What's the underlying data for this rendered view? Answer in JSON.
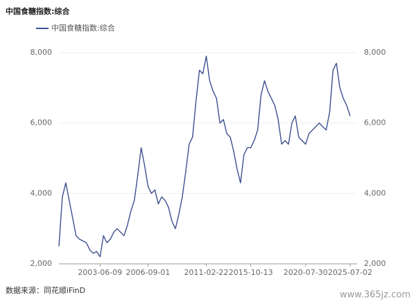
{
  "chart_data": {
    "type": "line",
    "title": "中国食糖指数:综合",
    "source": "数据来源：同花顺iFinD",
    "watermark": "www.365jz.com",
    "categories": [
      null,
      null,
      null,
      null,
      null,
      null,
      null,
      null,
      null,
      null,
      null,
      null,
      "2003-06-09",
      null,
      null,
      null,
      null,
      null,
      null,
      null,
      null,
      null,
      null,
      null,
      null,
      null,
      "2006-09-01",
      null,
      null,
      null,
      null,
      null,
      null,
      null,
      null,
      null,
      null,
      null,
      null,
      null,
      null,
      null,
      null,
      "2011-02-22",
      null,
      null,
      null,
      null,
      null,
      null,
      null,
      null,
      null,
      null,
      null,
      null,
      "2015-10-13",
      null,
      null,
      null,
      null,
      null,
      null,
      null,
      null,
      null,
      null,
      null,
      null,
      null,
      null,
      null,
      "2020-07-30",
      null,
      null,
      null,
      null,
      null,
      null,
      null,
      null,
      null,
      null,
      null,
      null,
      "2025-07-02"
    ],
    "series": [
      {
        "name": "中国食糖指数:综合",
        "color": "#3d4f8f",
        "values": [
          2500,
          3900,
          4300,
          3800,
          3300,
          2800,
          2700,
          2650,
          2600,
          2400,
          2300,
          2350,
          2200,
          2800,
          2600,
          2700,
          2900,
          3000,
          2900,
          2800,
          3100,
          3500,
          3800,
          4500,
          5300,
          4800,
          4200,
          4000,
          4100,
          3700,
          3900,
          3800,
          3600,
          3200,
          3000,
          3400,
          3900,
          4600,
          5400,
          5600,
          6600,
          7500,
          7400,
          7900,
          7200,
          6900,
          6700,
          6000,
          6100,
          5700,
          5600,
          5200,
          4700,
          4300,
          5100,
          5300,
          5300,
          5500,
          5800,
          6800,
          7200,
          6900,
          6700,
          6500,
          6100,
          5400,
          5500,
          5400,
          6000,
          6200,
          5600,
          5500,
          5400,
          5700,
          5800,
          5900,
          6000,
          5900,
          5800,
          6300,
          7500,
          7700,
          7000,
          6700,
          6500,
          6200
        ]
      }
    ],
    "ylim": [
      2000,
      8000
    ],
    "yticks": [
      {
        "value": 2000,
        "label": "2,000"
      },
      {
        "value": 4000,
        "label": "4,000"
      },
      {
        "value": 6000,
        "label": "6,000"
      },
      {
        "value": 8000,
        "label": "8,000"
      }
    ],
    "y2lim": [
      2000,
      8000
    ],
    "y2ticks": [
      {
        "value": 2000,
        "label": "2,000"
      },
      {
        "value": 4000,
        "label": "4,000"
      },
      {
        "value": 6000,
        "label": "6,000"
      },
      {
        "value": 8000,
        "label": "8,000"
      }
    ],
    "grid": true
  }
}
